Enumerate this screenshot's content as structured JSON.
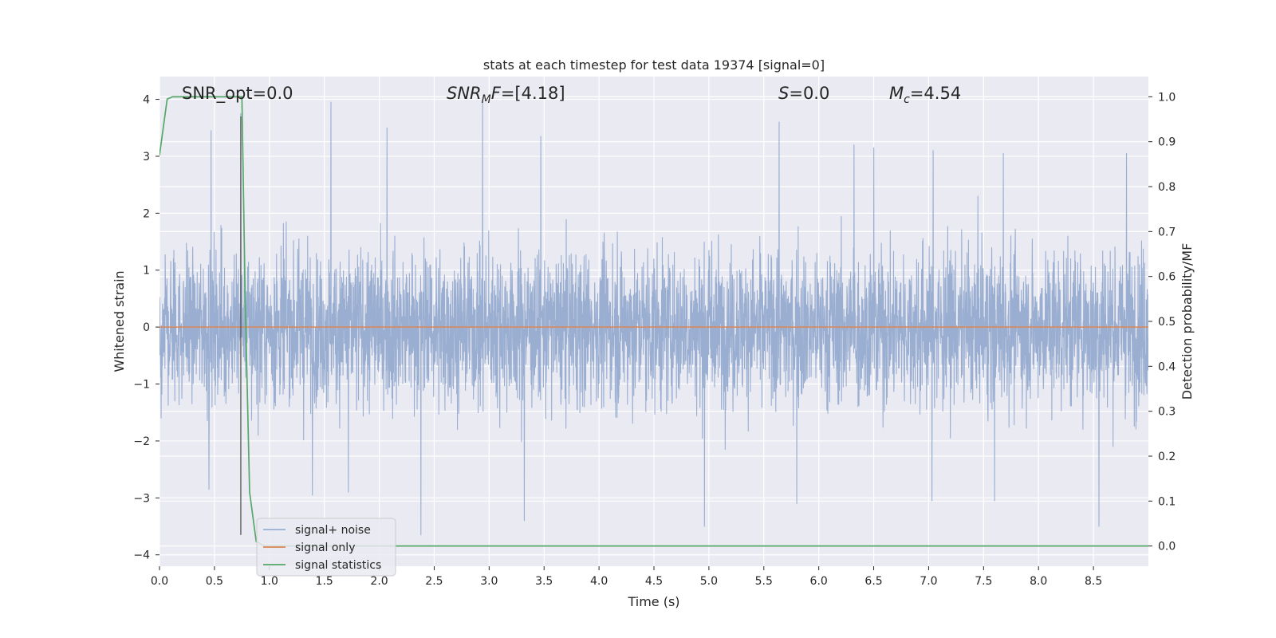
{
  "chart_data": {
    "type": "line",
    "title": "stats at each timestep for test data 19374 [signal=0]",
    "xlabel": "Time (s)",
    "ylabel": "Whitened strain",
    "y2label": "Detection probability/MF",
    "xlim": [
      0.0,
      9.0
    ],
    "ylim": [
      -4.2,
      4.4
    ],
    "y2lim": [
      -0.045,
      1.045
    ],
    "xticks": [
      0.0,
      0.5,
      1.0,
      1.5,
      2.0,
      2.5,
      3.0,
      3.5,
      4.0,
      4.5,
      5.0,
      5.5,
      6.0,
      6.5,
      7.0,
      7.5,
      8.0,
      8.5
    ],
    "xtick_labels": [
      "0.0",
      "0.5",
      "1.0",
      "1.5",
      "2.0",
      "2.5",
      "3.0",
      "3.5",
      "4.0",
      "4.5",
      "5.0",
      "5.5",
      "6.0",
      "6.5",
      "7.0",
      "7.5",
      "8.0",
      "8.5"
    ],
    "yticks": [
      -4,
      -3,
      -2,
      -1,
      0,
      1,
      2,
      3,
      4
    ],
    "ytick_labels": [
      "−4",
      "−3",
      "−2",
      "−1",
      "0",
      "1",
      "2",
      "3",
      "4"
    ],
    "y2ticks": [
      0.0,
      0.1,
      0.2,
      0.3,
      0.4,
      0.5,
      0.6,
      0.7,
      0.8,
      0.9,
      1.0
    ],
    "y2tick_labels": [
      "0.0",
      "0.1",
      "0.2",
      "0.3",
      "0.4",
      "0.5",
      "0.6",
      "0.7",
      "0.8",
      "0.9",
      "1.0"
    ],
    "grid": true,
    "legend_position": "lower-left",
    "colors": {
      "background": "#eaeaf2",
      "grid": "#ffffff",
      "noise": "#99aed1",
      "signal": "#dd8452",
      "statistics": "#55a868",
      "marker": "#555555"
    },
    "annotations": [
      {
        "id": "snr-opt",
        "text": "SNR_opt=0.0"
      },
      {
        "id": "snr-mf",
        "text": "SNR_MF=[4.18]"
      },
      {
        "id": "s",
        "text": "S=0.0"
      },
      {
        "id": "mc",
        "text": "M_c=4.54"
      }
    ],
    "vertical_marker": {
      "x": 0.74,
      "y_range": [
        -3.65,
        3.7
      ]
    },
    "series": [
      {
        "name": "signal+ noise",
        "axis": "left",
        "style": "dense noise",
        "x_range": [
          0.0,
          9.0
        ],
        "typical_range": [
          -2.3,
          2.1
        ],
        "peaks": [
          {
            "x": 0.47,
            "y": 3.45
          },
          {
            "x": 0.74,
            "y": 3.75
          },
          {
            "x": 1.56,
            "y": 3.95
          },
          {
            "x": 2.07,
            "y": 3.5
          },
          {
            "x": 2.94,
            "y": 4.0
          },
          {
            "x": 3.47,
            "y": 3.35
          },
          {
            "x": 5.64,
            "y": 3.6
          },
          {
            "x": 6.32,
            "y": 3.2
          },
          {
            "x": 6.5,
            "y": 3.15
          },
          {
            "x": 7.04,
            "y": 3.1
          },
          {
            "x": 7.68,
            "y": 3.05
          },
          {
            "x": 8.8,
            "y": 3.05
          }
        ],
        "troughs": [
          {
            "x": 0.45,
            "y": -2.85
          },
          {
            "x": 1.39,
            "y": -2.95
          },
          {
            "x": 1.72,
            "y": -2.9
          },
          {
            "x": 2.38,
            "y": -3.65
          },
          {
            "x": 3.32,
            "y": -3.4
          },
          {
            "x": 4.96,
            "y": -3.5
          },
          {
            "x": 5.8,
            "y": -3.1
          },
          {
            "x": 7.03,
            "y": -3.05
          },
          {
            "x": 7.6,
            "y": -3.05
          },
          {
            "x": 8.55,
            "y": -3.5
          }
        ]
      },
      {
        "name": "signal only",
        "axis": "left",
        "x": [
          0.0,
          9.0
        ],
        "y": [
          0.0,
          0.0
        ]
      },
      {
        "name": "signal statistics",
        "axis": "right",
        "x": [
          0.0,
          0.07,
          0.12,
          0.2,
          0.3,
          0.5,
          0.7,
          0.75,
          0.78,
          0.82,
          0.88,
          0.95,
          1.2,
          2.0,
          4.0,
          6.0,
          9.0
        ],
        "y": [
          0.87,
          0.995,
          1.0,
          1.0,
          1.0,
          1.0,
          1.0,
          1.0,
          0.55,
          0.12,
          0.01,
          0.0,
          0.0,
          0.0,
          0.0,
          0.0,
          0.0
        ]
      }
    ]
  }
}
